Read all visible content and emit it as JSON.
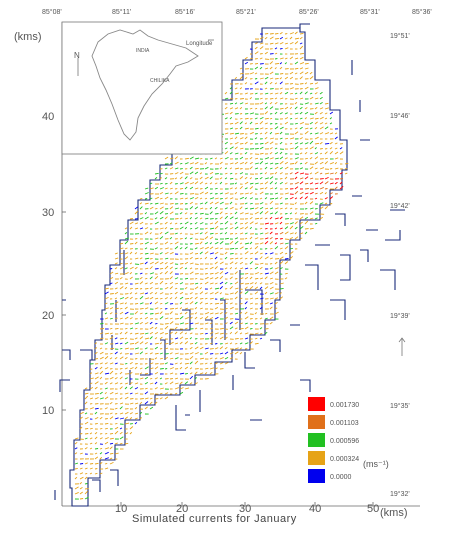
{
  "map": {
    "caption": "Simulated currents for January",
    "top_longitudes": [
      "85°08'",
      "85°11'",
      "85°16'",
      "85°21'",
      "85°26'",
      "85°31'",
      "85°36'"
    ],
    "y_unit": "(kms)",
    "x_unit": "(kms)",
    "y_ticks": [
      "10",
      "20",
      "30",
      "40"
    ],
    "x_ticks": [
      "10",
      "20",
      "30",
      "40",
      "50"
    ],
    "right_latitudes": [
      "19°51'",
      "19°46'",
      "19°42'",
      "19°39'",
      "19°35'",
      "19°32'"
    ],
    "inset": {
      "north_label": "N",
      "longitude_label": "Longitude"
    },
    "legend": {
      "unit": "(ms⁻¹)",
      "items": [
        {
          "label": "0.001730",
          "color": "#ff0000"
        },
        {
          "label": "0.001103",
          "color": "#e0701a"
        },
        {
          "label": "0.000596",
          "color": "#22c022"
        },
        {
          "label": "0.000324",
          "color": "#e6a317"
        },
        {
          "label": "0.0000",
          "color": "#0000ee"
        }
      ]
    },
    "colors": {
      "coast": "#1a2a7a",
      "frame": "#555555",
      "inset": "#555555"
    }
  }
}
